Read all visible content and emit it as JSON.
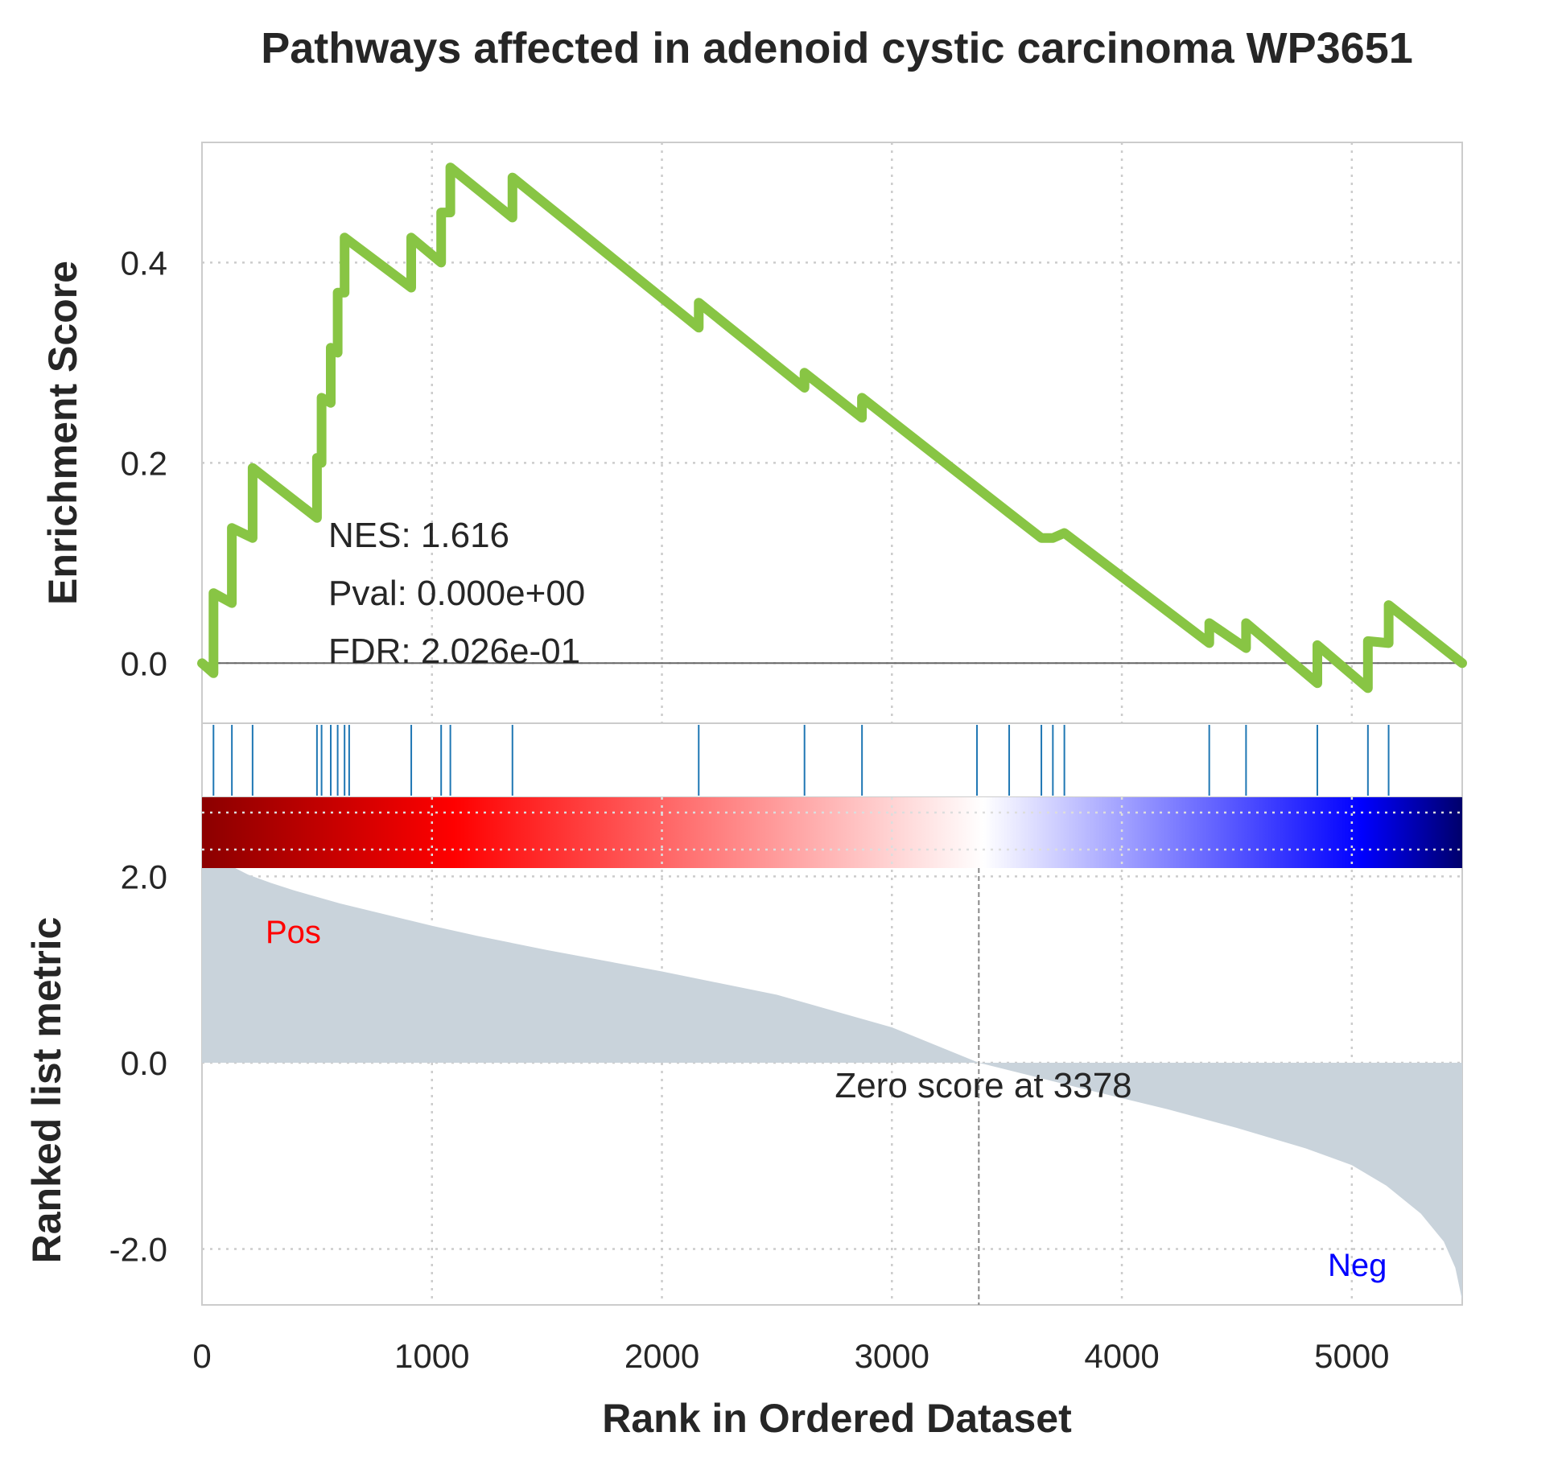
{
  "chart_data": {
    "type": "line",
    "title": "Pathways affected in adenoid cystic carcinoma WP3651",
    "xlabel": "Rank in Ordered Dataset",
    "xlim": [
      0,
      5480
    ],
    "x_ticks": [
      0,
      1000,
      2000,
      3000,
      4000,
      5000
    ],
    "x_tick_labels": [
      "0",
      "1000",
      "2000",
      "3000",
      "4000",
      "5000"
    ],
    "enrichment": {
      "ylabel": "Enrichment Score",
      "ylim": [
        -0.06,
        0.52
      ],
      "y_ticks": [
        0.0,
        0.2,
        0.4
      ],
      "y_tick_labels": [
        "0.0",
        "0.2",
        "0.4"
      ],
      "line_color": "#88c544",
      "hit_ranks": [
        50,
        130,
        220,
        500,
        520,
        560,
        590,
        620,
        640,
        910,
        1040,
        1080,
        1350,
        2160,
        2620,
        2870,
        3370,
        3510,
        3650,
        3700,
        3750,
        4380,
        4540,
        4850,
        5070,
        5160
      ],
      "es_points": [
        [
          0,
          0.0
        ],
        [
          50,
          -0.01
        ],
        [
          50,
          0.07
        ],
        [
          130,
          0.06
        ],
        [
          130,
          0.135
        ],
        [
          220,
          0.125
        ],
        [
          220,
          0.195
        ],
        [
          500,
          0.145
        ],
        [
          500,
          0.205
        ],
        [
          520,
          0.2
        ],
        [
          520,
          0.265
        ],
        [
          560,
          0.26
        ],
        [
          560,
          0.315
        ],
        [
          590,
          0.31
        ],
        [
          590,
          0.37
        ],
        [
          620,
          0.37
        ],
        [
          620,
          0.425
        ],
        [
          910,
          0.375
        ],
        [
          910,
          0.425
        ],
        [
          1040,
          0.4
        ],
        [
          1040,
          0.45
        ],
        [
          1080,
          0.45
        ],
        [
          1080,
          0.495
        ],
        [
          1350,
          0.445
        ],
        [
          1350,
          0.485
        ],
        [
          2160,
          0.335
        ],
        [
          2160,
          0.36
        ],
        [
          2620,
          0.275
        ],
        [
          2620,
          0.29
        ],
        [
          2870,
          0.245
        ],
        [
          2870,
          0.265
        ],
        [
          3510,
          0.15
        ],
        [
          3650,
          0.125
        ],
        [
          3700,
          0.125
        ],
        [
          3750,
          0.13
        ],
        [
          4380,
          0.02
        ],
        [
          4380,
          0.04
        ],
        [
          4540,
          0.015
        ],
        [
          4540,
          0.04
        ],
        [
          4850,
          -0.02
        ],
        [
          4850,
          0.018
        ],
        [
          5070,
          -0.025
        ],
        [
          5070,
          0.022
        ],
        [
          5160,
          0.02
        ],
        [
          5160,
          0.058
        ],
        [
          5480,
          0.0
        ]
      ],
      "stats": [
        "NES: 1.616",
        "Pval: 0.000e+00",
        "FDR: 2.026e-01"
      ]
    },
    "hits": {
      "color": "#1f77b4"
    },
    "colorbar": {
      "colors": [
        "#8b0000",
        "#ff0000",
        "#ffffff",
        "#0000ff",
        "#00006b"
      ]
    },
    "ranked_metric": {
      "ylabel": "Ranked list metric",
      "ylim": [
        -2.6,
        2.85
      ],
      "y_ticks": [
        2.0,
        0.0,
        -2.0
      ],
      "y_tick_labels": [
        "2.0",
        "0.0",
        "-2.0"
      ],
      "fill_color": "#c9d3db",
      "points": [
        [
          0,
          2.45
        ],
        [
          20,
          2.35
        ],
        [
          60,
          2.25
        ],
        [
          120,
          2.12
        ],
        [
          200,
          2.02
        ],
        [
          300,
          1.93
        ],
        [
          400,
          1.85
        ],
        [
          500,
          1.78
        ],
        [
          600,
          1.71
        ],
        [
          800,
          1.59
        ],
        [
          1000,
          1.47
        ],
        [
          1200,
          1.36
        ],
        [
          1500,
          1.21
        ],
        [
          2000,
          0.98
        ],
        [
          2500,
          0.73
        ],
        [
          3000,
          0.38
        ],
        [
          3378,
          0.0
        ],
        [
          3800,
          -0.26
        ],
        [
          4200,
          -0.5
        ],
        [
          4500,
          -0.7
        ],
        [
          4800,
          -0.92
        ],
        [
          5000,
          -1.1
        ],
        [
          5150,
          -1.32
        ],
        [
          5300,
          -1.62
        ],
        [
          5400,
          -1.92
        ],
        [
          5450,
          -2.2
        ],
        [
          5480,
          -2.55
        ]
      ],
      "zero_cross": 3378,
      "zero_label": "Zero score at 3378",
      "pos_label": "Pos",
      "neg_label": "Neg",
      "pos_color": "#ff0000",
      "neg_color": "#0000ff"
    }
  }
}
